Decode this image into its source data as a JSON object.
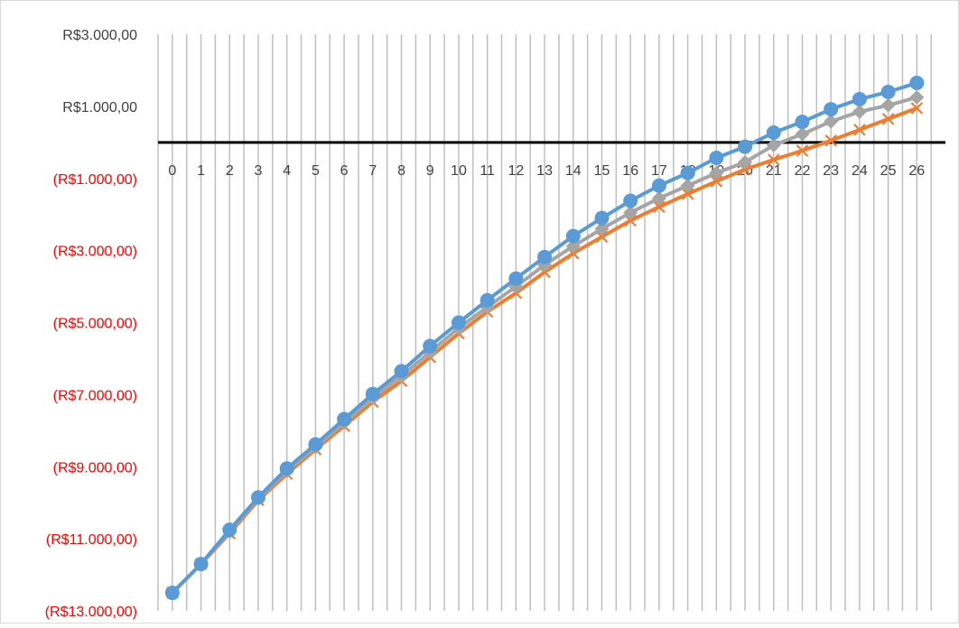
{
  "chart_data": {
    "type": "line",
    "title": "",
    "xlabel": "",
    "ylabel": "",
    "ylim": [
      -13000,
      3000
    ],
    "x": [
      0,
      1,
      2,
      3,
      4,
      5,
      6,
      7,
      8,
      9,
      10,
      11,
      12,
      13,
      14,
      15,
      16,
      17,
      18,
      19,
      20,
      21,
      22,
      23,
      24,
      25,
      26
    ],
    "x_tick_labels": [
      "0",
      "1",
      "2",
      "3",
      "4",
      "5",
      "6",
      "7",
      "8",
      "9",
      "10",
      "11",
      "12",
      "13",
      "14",
      "15",
      "16",
      "17",
      "18",
      "19",
      "20",
      "21",
      "22",
      "23",
      "24",
      "25",
      "26"
    ],
    "y_ticks": [
      3000,
      1000,
      -1000,
      -3000,
      -5000,
      -7000,
      -9000,
      -11000,
      -13000
    ],
    "y_tick_labels": [
      "R$3.000,00",
      "R$1.000,00",
      "(R$1.000,00)",
      "(R$3.000,00)",
      "(R$5.000,00)",
      "(R$7.000,00)",
      "(R$9.000,00)",
      "(R$11.000,00)",
      "(R$13.000,00)"
    ],
    "grid": "vertical",
    "legend": "none",
    "series": [
      {
        "color": "#5B9BD5",
        "marker": "circle",
        "values": [
          -12500,
          -11700,
          -10750,
          -9850,
          -9050,
          -8380,
          -7680,
          -6980,
          -6350,
          -5650,
          -5000,
          -4380,
          -3780,
          -3180,
          -2600,
          -2100,
          -1620,
          -1200,
          -850,
          -430,
          -120,
          270,
          570,
          920,
          1200,
          1400,
          1650
        ]
      },
      {
        "color": "#A5A5A5",
        "marker": "diamond",
        "values": [
          -12500,
          -11700,
          -10800,
          -9880,
          -9120,
          -8460,
          -7780,
          -7100,
          -6480,
          -5820,
          -5150,
          -4570,
          -4000,
          -3400,
          -2880,
          -2400,
          -1950,
          -1550,
          -1200,
          -850,
          -550,
          -80,
          230,
          580,
          850,
          1030,
          1250
        ]
      },
      {
        "color": "#ED7D31",
        "marker": "x",
        "values": [
          -12500,
          -11700,
          -10850,
          -9930,
          -9200,
          -8520,
          -7870,
          -7200,
          -6620,
          -5960,
          -5300,
          -4700,
          -4180,
          -3600,
          -3080,
          -2620,
          -2170,
          -1790,
          -1430,
          -1080,
          -750,
          -480,
          -230,
          50,
          350,
          650,
          950
        ]
      }
    ]
  }
}
